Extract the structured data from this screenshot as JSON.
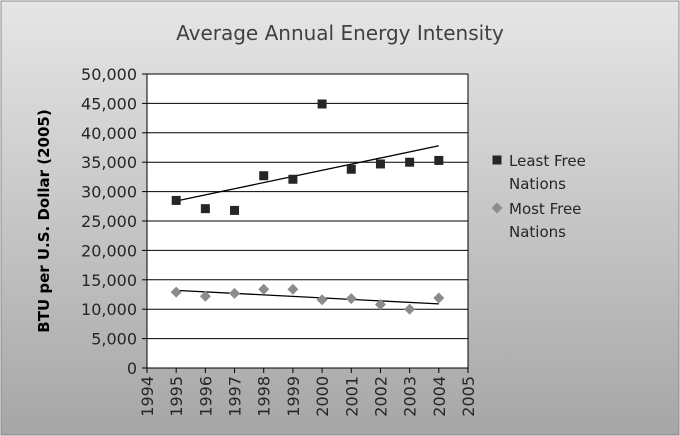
{
  "chart_data": {
    "type": "scatter",
    "title": "Average Annual  Energy Intensity",
    "xlabel": "",
    "ylabel": "BTU per U.S. Dollar (2005)",
    "xlim": [
      1994,
      2005
    ],
    "ylim": [
      0,
      50000
    ],
    "x_ticks": [
      "1994",
      "1995",
      "1996",
      "1997",
      "1998",
      "1999",
      "2000",
      "2001",
      "2002",
      "2003",
      "2004",
      "2005"
    ],
    "y_ticks": [
      "0",
      "5,000",
      "10,000",
      "15,000",
      "20,000",
      "25,000",
      "30,000",
      "35,000",
      "40,000",
      "45,000",
      "50,000"
    ],
    "legend_position": "right",
    "grid": "horizontal",
    "series": [
      {
        "name": "Least Free Nations",
        "marker": "square",
        "color": "#262626",
        "x": [
          1995,
          1996,
          1997,
          1998,
          1999,
          2000,
          2001,
          2002,
          2003,
          2004
        ],
        "y": [
          28500,
          27100,
          26800,
          32700,
          32100,
          44900,
          33800,
          34700,
          35000,
          35300
        ],
        "trendline": {
          "type": "linear",
          "y_start": 28400,
          "y_end": 37800
        }
      },
      {
        "name": "Most Free Nations",
        "marker": "diamond",
        "color": "#8c8c8c",
        "x": [
          1995,
          1996,
          1997,
          1998,
          1999,
          2000,
          2001,
          2002,
          2003,
          2004
        ],
        "y": [
          12900,
          12200,
          12700,
          13400,
          13400,
          11600,
          11800,
          10800,
          10000,
          11900
        ],
        "trendline": {
          "type": "linear",
          "y_start": 13200,
          "y_end": 10900
        }
      }
    ]
  },
  "colors": {
    "frame_top": "#e6e6e6",
    "frame_bottom": "#a6a6a6",
    "plot_bg": "#ffffff",
    "grid": "#000000",
    "text": "#262626"
  }
}
